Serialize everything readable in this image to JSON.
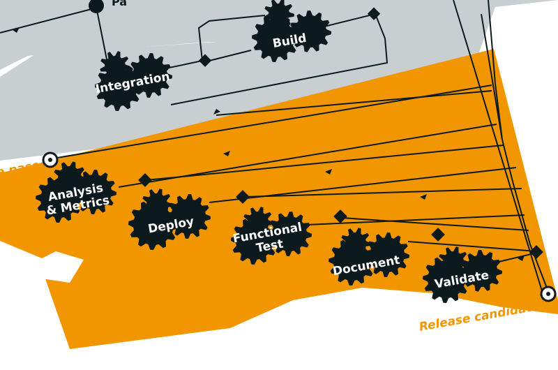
{
  "diagram": {
    "stages": {
      "integration": "Integration",
      "build": "Build",
      "analysis_line1": "Analysis",
      "analysis_line2": "& Metrics",
      "deploy": "Deploy",
      "functional_line1": "Functional",
      "functional_line2": "Test",
      "document": "Document",
      "validate": "Validate"
    },
    "labels": {
      "top_cut": "Pa",
      "pass": "e pass",
      "release": "Release candidate"
    },
    "colors": {
      "orange": "#f29600",
      "gray": "#c9ced1",
      "dark": "#0d1a1d",
      "white": "#ffffff"
    }
  }
}
